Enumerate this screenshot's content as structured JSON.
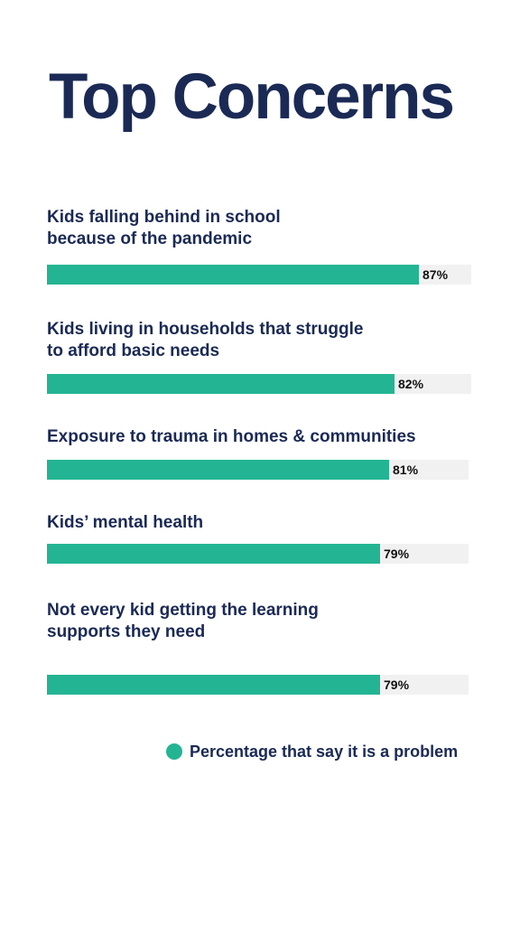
{
  "chart_data": {
    "type": "bar",
    "orientation": "horizontal",
    "title": "Top Concerns",
    "categories": [
      "Kids falling behind in school\nbecause of the pandemic",
      "Kids living in households that struggle\nto afford basic needs",
      "Exposure to trauma in homes & communities",
      "Kids’ mental health",
      "Not every kid getting the learning\nsupports they need"
    ],
    "series": [
      {
        "name": "Percentage that say it is a problem",
        "values": [
          87,
          82,
          81,
          79,
          79
        ],
        "labels": [
          "87%",
          "82%",
          "81%",
          "79%",
          "79%"
        ],
        "color": "#23b593"
      }
    ],
    "xlim": [
      0,
      100
    ],
    "xlabel": "",
    "ylabel": "",
    "grid": false,
    "legend_position": "bottom-right",
    "colors": {
      "title": "#1b2a55",
      "track": "#f1f1f1",
      "bar": "#23b593",
      "value_text": "#111111"
    }
  }
}
